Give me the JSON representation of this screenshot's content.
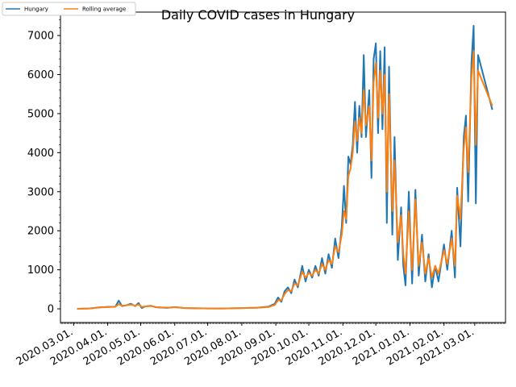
{
  "chart_data": {
    "type": "line",
    "title": "Daily COVID cases in Hungary",
    "xlabel": "",
    "ylabel": "",
    "x_start": "2020-03-04",
    "x_end": "2021-03-17",
    "xlim": [
      "2020-02-18",
      "2021-03-29"
    ],
    "ylim": [
      -350,
      7600
    ],
    "y_ticks": [
      0,
      1000,
      2000,
      3000,
      4000,
      5000,
      6000,
      7000
    ],
    "x_ticks": [
      "2020.03.01.",
      "2020.04.01.",
      "2020.05.01.",
      "2020.06.01.",
      "2020.07.01.",
      "2020.08.01.",
      "2020.09.01.",
      "2020.10.01.",
      "2020.11.01.",
      "2020.12.01.",
      "2021.01.01.",
      "2021.02.01.",
      "2021.03.01."
    ],
    "x_tick_dates": [
      "2020-03-01",
      "2020-04-01",
      "2020-05-01",
      "2020-06-01",
      "2020-07-01",
      "2020-08-01",
      "2020-09-01",
      "2020-10-01",
      "2020-11-01",
      "2020-12-01",
      "2021-01-01",
      "2021-02-01",
      "2021-03-01"
    ],
    "legend_position": "top-left",
    "grid": false,
    "series": [
      {
        "name": "Hungary",
        "color": "#1f77b4",
        "points": [
          [
            "2020-03-04",
            2
          ],
          [
            "2020-03-15",
            10
          ],
          [
            "2020-03-25",
            40
          ],
          [
            "2020-04-01",
            50
          ],
          [
            "2020-04-08",
            55
          ],
          [
            "2020-04-11",
            210
          ],
          [
            "2020-04-14",
            70
          ],
          [
            "2020-04-18",
            90
          ],
          [
            "2020-04-22",
            130
          ],
          [
            "2020-04-26",
            70
          ],
          [
            "2020-04-29",
            150
          ],
          [
            "2020-05-02",
            20
          ],
          [
            "2020-05-05",
            60
          ],
          [
            "2020-05-10",
            80
          ],
          [
            "2020-05-15",
            40
          ],
          [
            "2020-05-25",
            25
          ],
          [
            "2020-06-01",
            45
          ],
          [
            "2020-06-10",
            20
          ],
          [
            "2020-06-20",
            15
          ],
          [
            "2020-07-01",
            10
          ],
          [
            "2020-07-15",
            10
          ],
          [
            "2020-08-01",
            20
          ],
          [
            "2020-08-15",
            30
          ],
          [
            "2020-08-25",
            55
          ],
          [
            "2020-08-31",
            130
          ],
          [
            "2020-09-03",
            290
          ],
          [
            "2020-09-06",
            180
          ],
          [
            "2020-09-09",
            450
          ],
          [
            "2020-09-12",
            550
          ],
          [
            "2020-09-15",
            400
          ],
          [
            "2020-09-18",
            750
          ],
          [
            "2020-09-21",
            550
          ],
          [
            "2020-09-25",
            1100
          ],
          [
            "2020-09-28",
            700
          ],
          [
            "2020-10-01",
            1000
          ],
          [
            "2020-10-04",
            800
          ],
          [
            "2020-10-07",
            1100
          ],
          [
            "2020-10-10",
            850
          ],
          [
            "2020-10-13",
            1300
          ],
          [
            "2020-10-16",
            900
          ],
          [
            "2020-10-19",
            1400
          ],
          [
            "2020-10-22",
            1050
          ],
          [
            "2020-10-25",
            1800
          ],
          [
            "2020-10-28",
            1300
          ],
          [
            "2020-10-31",
            2100
          ],
          [
            "2020-11-02",
            3150
          ],
          [
            "2020-11-04",
            2200
          ],
          [
            "2020-11-06",
            3900
          ],
          [
            "2020-11-08",
            3700
          ],
          [
            "2020-11-10",
            4200
          ],
          [
            "2020-11-12",
            5300
          ],
          [
            "2020-11-14",
            4000
          ],
          [
            "2020-11-16",
            5200
          ],
          [
            "2020-11-18",
            4400
          ],
          [
            "2020-11-20",
            6500
          ],
          [
            "2020-11-22",
            4400
          ],
          [
            "2020-11-25",
            5600
          ],
          [
            "2020-11-27",
            3350
          ],
          [
            "2020-11-29",
            6400
          ],
          [
            "2020-12-01",
            6800
          ],
          [
            "2020-12-03",
            4500
          ],
          [
            "2020-12-05",
            6600
          ],
          [
            "2020-12-07",
            4600
          ],
          [
            "2020-12-09",
            6700
          ],
          [
            "2020-12-11",
            2200
          ],
          [
            "2020-12-13",
            6200
          ],
          [
            "2020-12-16",
            1900
          ],
          [
            "2020-12-18",
            4400
          ],
          [
            "2020-12-21",
            1250
          ],
          [
            "2020-12-24",
            2600
          ],
          [
            "2020-12-26",
            1100
          ],
          [
            "2020-12-28",
            600
          ],
          [
            "2020-12-31",
            3000
          ],
          [
            "2021-01-03",
            650
          ],
          [
            "2021-01-06",
            3050
          ],
          [
            "2021-01-09",
            850
          ],
          [
            "2021-01-12",
            1900
          ],
          [
            "2021-01-15",
            700
          ],
          [
            "2021-01-18",
            1400
          ],
          [
            "2021-01-21",
            550
          ],
          [
            "2021-01-24",
            1100
          ],
          [
            "2021-01-27",
            700
          ],
          [
            "2021-02-01",
            1650
          ],
          [
            "2021-02-04",
            1000
          ],
          [
            "2021-02-08",
            2000
          ],
          [
            "2021-02-11",
            800
          ],
          [
            "2021-02-13",
            3100
          ],
          [
            "2021-02-16",
            1600
          ],
          [
            "2021-02-19",
            4400
          ],
          [
            "2021-02-21",
            4950
          ],
          [
            "2021-02-23",
            2750
          ],
          [
            "2021-02-26",
            6300
          ],
          [
            "2021-02-28",
            7250
          ],
          [
            "2021-03-02",
            2700
          ],
          [
            "2021-03-04",
            6500
          ],
          [
            "2021-03-17",
            5100
          ]
        ]
      },
      {
        "name": "Rolling average",
        "color": "#ff7f0e",
        "points": [
          [
            "2020-03-04",
            1
          ],
          [
            "2020-03-15",
            8
          ],
          [
            "2020-03-25",
            35
          ],
          [
            "2020-04-01",
            45
          ],
          [
            "2020-04-08",
            52
          ],
          [
            "2020-04-11",
            120
          ],
          [
            "2020-04-14",
            80
          ],
          [
            "2020-04-18",
            90
          ],
          [
            "2020-04-22",
            110
          ],
          [
            "2020-04-26",
            80
          ],
          [
            "2020-04-29",
            110
          ],
          [
            "2020-05-02",
            50
          ],
          [
            "2020-05-05",
            60
          ],
          [
            "2020-05-10",
            70
          ],
          [
            "2020-05-15",
            45
          ],
          [
            "2020-05-25",
            30
          ],
          [
            "2020-06-01",
            40
          ],
          [
            "2020-06-10",
            22
          ],
          [
            "2020-06-20",
            15
          ],
          [
            "2020-07-01",
            12
          ],
          [
            "2020-07-15",
            10
          ],
          [
            "2020-08-01",
            18
          ],
          [
            "2020-08-15",
            28
          ],
          [
            "2020-08-25",
            45
          ],
          [
            "2020-08-31",
            100
          ],
          [
            "2020-09-03",
            220
          ],
          [
            "2020-09-06",
            220
          ],
          [
            "2020-09-09",
            380
          ],
          [
            "2020-09-12",
            480
          ],
          [
            "2020-09-15",
            450
          ],
          [
            "2020-09-18",
            650
          ],
          [
            "2020-09-21",
            600
          ],
          [
            "2020-09-25",
            950
          ],
          [
            "2020-09-28",
            800
          ],
          [
            "2020-10-01",
            920
          ],
          [
            "2020-10-04",
            850
          ],
          [
            "2020-10-07",
            1000
          ],
          [
            "2020-10-10",
            900
          ],
          [
            "2020-10-13",
            1150
          ],
          [
            "2020-10-16",
            1000
          ],
          [
            "2020-10-19",
            1250
          ],
          [
            "2020-10-22",
            1150
          ],
          [
            "2020-10-25",
            1600
          ],
          [
            "2020-10-28",
            1450
          ],
          [
            "2020-10-31",
            1900
          ],
          [
            "2020-11-02",
            2500
          ],
          [
            "2020-11-04",
            2300
          ],
          [
            "2020-11-06",
            3400
          ],
          [
            "2020-11-08",
            3600
          ],
          [
            "2020-11-10",
            4000
          ],
          [
            "2020-11-12",
            4800
          ],
          [
            "2020-11-14",
            4300
          ],
          [
            "2020-11-16",
            4900
          ],
          [
            "2020-11-18",
            4500
          ],
          [
            "2020-11-20",
            5600
          ],
          [
            "2020-11-22",
            4700
          ],
          [
            "2020-11-25",
            5200
          ],
          [
            "2020-11-27",
            3800
          ],
          [
            "2020-11-29",
            5800
          ],
          [
            "2020-12-01",
            6300
          ],
          [
            "2020-12-03",
            4900
          ],
          [
            "2020-12-05",
            6100
          ],
          [
            "2020-12-07",
            5000
          ],
          [
            "2020-12-09",
            6000
          ],
          [
            "2020-12-11",
            3000
          ],
          [
            "2020-12-13",
            5500
          ],
          [
            "2020-12-16",
            2500
          ],
          [
            "2020-12-18",
            3800
          ],
          [
            "2020-12-21",
            1700
          ],
          [
            "2020-12-24",
            2400
          ],
          [
            "2020-12-26",
            1400
          ],
          [
            "2020-12-28",
            900
          ],
          [
            "2020-12-31",
            2500
          ],
          [
            "2021-01-03",
            1000
          ],
          [
            "2021-01-06",
            2800
          ],
          [
            "2021-01-09",
            1100
          ],
          [
            "2021-01-12",
            1700
          ],
          [
            "2021-01-15",
            900
          ],
          [
            "2021-01-18",
            1300
          ],
          [
            "2021-01-21",
            800
          ],
          [
            "2021-01-24",
            1100
          ],
          [
            "2021-01-27",
            900
          ],
          [
            "2021-02-01",
            1500
          ],
          [
            "2021-02-04",
            1150
          ],
          [
            "2021-02-08",
            1800
          ],
          [
            "2021-02-11",
            1100
          ],
          [
            "2021-02-13",
            2900
          ],
          [
            "2021-02-16",
            2300
          ],
          [
            "2021-02-19",
            4100
          ],
          [
            "2021-02-21",
            4650
          ],
          [
            "2021-02-23",
            3500
          ],
          [
            "2021-02-26",
            5900
          ],
          [
            "2021-02-28",
            6600
          ],
          [
            "2021-03-02",
            4200
          ],
          [
            "2021-03-04",
            6100
          ],
          [
            "2021-03-17",
            5200
          ]
        ]
      }
    ]
  }
}
